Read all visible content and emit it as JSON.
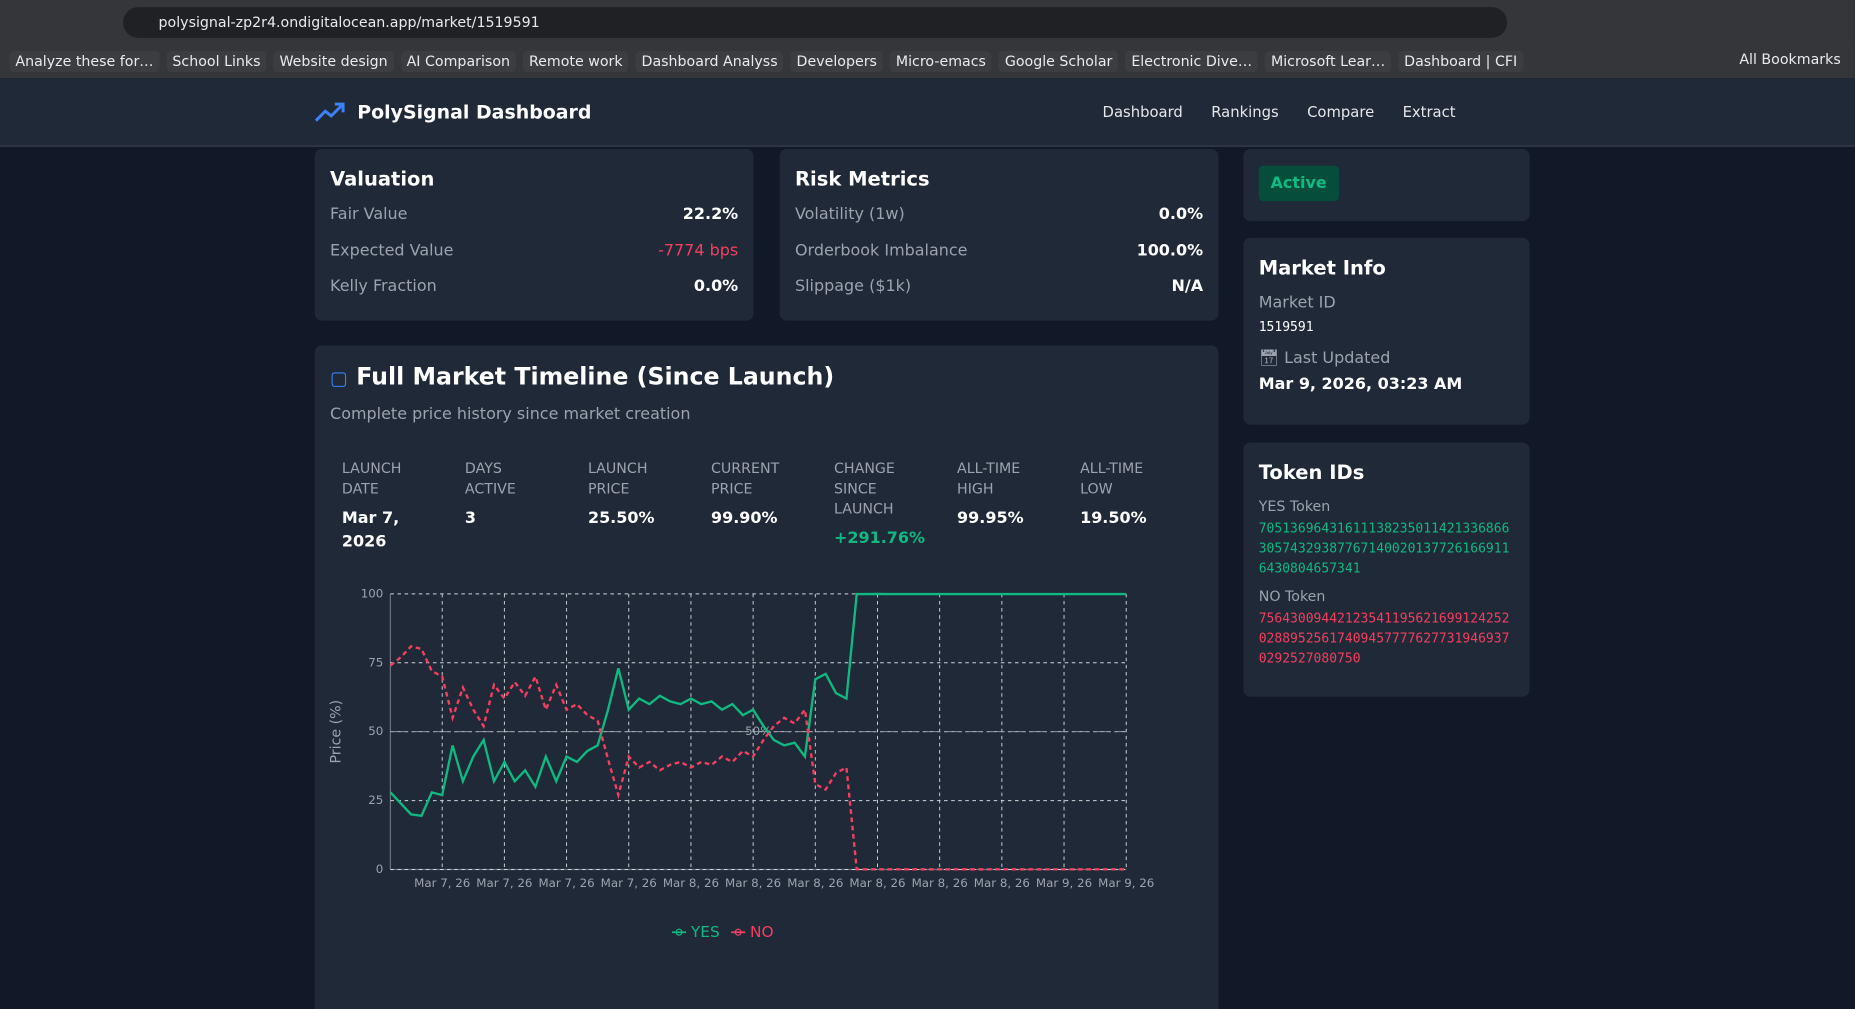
{
  "browser": {
    "url": "polysignal-zp2r4.ondigitalocean.app/market/1519591",
    "bookmarks": [
      "Analyze these for…",
      "School Links",
      "Website design",
      "AI Comparison",
      "Remote work",
      "Dashboard Analyss",
      "Developers",
      "Micro-emacs",
      "Google Scholar",
      "Electronic Dive…",
      "Microsoft Lear…",
      "Dashboard | CFI"
    ],
    "all_bookmarks": "All Bookmarks"
  },
  "header": {
    "brand": "PolySignal Dashboard",
    "nav": [
      "Dashboard",
      "Rankings",
      "Compare",
      "Extract"
    ]
  },
  "valuation": {
    "title": "Valuation",
    "rows": [
      [
        "Fair Value",
        "22.2%"
      ],
      [
        "Expected Value",
        "-7774 bps"
      ],
      [
        "Kelly Fraction",
        "0.0%"
      ]
    ]
  },
  "risk": {
    "title": "Risk Metrics",
    "rows": [
      [
        "Volatility (1w)",
        "0.0%"
      ],
      [
        "Orderbook Imbalance",
        "100.0%"
      ],
      [
        "Slippage ($1k)",
        "N/A"
      ]
    ]
  },
  "status": "Active",
  "market_info": {
    "title": "Market Info",
    "id_label": "Market ID",
    "id": "1519591",
    "updated_label": "Last Updated",
    "updated": "Mar 9, 2026, 03:23 AM"
  },
  "token_ids": {
    "title": "Token IDs",
    "yes_label": "YES Token",
    "yes": "70513696431611138235011421336866305743293877671400201377261669116430804657341",
    "no_label": "NO Token",
    "no": "75643009442123541195621699124252028895256174094577776277319469370292527080750"
  },
  "timeline": {
    "title": "Full Market Timeline (Since Launch)",
    "subtitle": "Complete price history since market creation",
    "stats": [
      {
        "label": "LAUNCH DATE",
        "value": "Mar 7, 2026"
      },
      {
        "label": "DAYS ACTIVE",
        "value": "3"
      },
      {
        "label": "LAUNCH PRICE",
        "value": "25.50%"
      },
      {
        "label": "CURRENT PRICE",
        "value": "99.90%"
      },
      {
        "label": "CHANGE SINCE LAUNCH",
        "value": "+291.76%"
      },
      {
        "label": "ALL-TIME HIGH",
        "value": "99.95%"
      },
      {
        "label": "ALL-TIME LOW",
        "value": "19.50%"
      }
    ]
  },
  "chart_data": {
    "type": "line",
    "y_label": "Price (%)",
    "ylim": [
      0,
      100
    ],
    "yticks": [
      0,
      25,
      50,
      75,
      100
    ],
    "grid": true,
    "annotation": {
      "text": "50%",
      "value": 50
    },
    "categories": [
      null,
      null,
      null,
      null,
      null,
      "Mar 7, 26",
      null,
      null,
      null,
      null,
      null,
      "Mar 7, 26",
      null,
      null,
      null,
      null,
      null,
      "Mar 7, 26",
      null,
      null,
      null,
      null,
      null,
      "Mar 7, 26",
      null,
      null,
      null,
      null,
      null,
      "Mar 8, 26",
      null,
      null,
      null,
      null,
      null,
      "Mar 8, 26",
      null,
      null,
      null,
      null,
      null,
      "Mar 8, 26",
      null,
      null,
      null,
      null,
      null,
      "Mar 8, 26",
      null,
      null,
      null,
      null,
      null,
      "Mar 8, 26",
      null,
      null,
      null,
      null,
      null,
      "Mar 8, 26",
      null,
      null,
      null,
      null,
      null,
      "Mar 9, 26",
      null,
      null,
      null,
      null,
      null,
      "Mar 9, 26"
    ],
    "series": [
      {
        "name": "YES",
        "color": "#10b981",
        "dash": false,
        "values": [
          28,
          24,
          20,
          19.5,
          28,
          27,
          45,
          32,
          41,
          47,
          32,
          39,
          32,
          36,
          30,
          41,
          32,
          41,
          39,
          43,
          45,
          58,
          73,
          58,
          62,
          60,
          63,
          61,
          60,
          62,
          60,
          61,
          58,
          60,
          56,
          58,
          52,
          47,
          45,
          46,
          41,
          69,
          71,
          64,
          62,
          99.9,
          99.9,
          99.95,
          99.9,
          99.9,
          99.9,
          99.9,
          99.9,
          99.9,
          99.9,
          99.9,
          99.9,
          99.9,
          99.9,
          99.9,
          99.9,
          99.9,
          99.9,
          99.9,
          99.9,
          99.9,
          99.9,
          99.9,
          99.9,
          99.9,
          99.9,
          99.9
        ]
      },
      {
        "name": "NO",
        "color": "#f43f5e",
        "dash": true,
        "values": [
          74,
          77,
          81,
          80,
          72,
          70,
          55,
          66,
          58,
          52,
          67,
          62,
          68,
          63,
          70,
          58,
          67,
          58,
          60,
          56,
          54,
          40,
          27,
          41,
          37,
          39,
          36,
          38,
          39,
          37,
          39,
          38,
          41,
          39,
          43,
          41,
          47,
          52,
          55,
          53,
          58,
          31,
          29,
          35,
          37,
          0.1,
          0.1,
          0.05,
          0.1,
          0.1,
          0.1,
          0.1,
          0.1,
          0.1,
          0.1,
          0.1,
          0.1,
          0.1,
          0.1,
          0.1,
          0.1,
          0.1,
          0.1,
          0.1,
          0.1,
          0.1,
          0.1,
          0.1,
          0.1,
          0.1,
          0.1,
          0.1
        ]
      }
    ]
  }
}
